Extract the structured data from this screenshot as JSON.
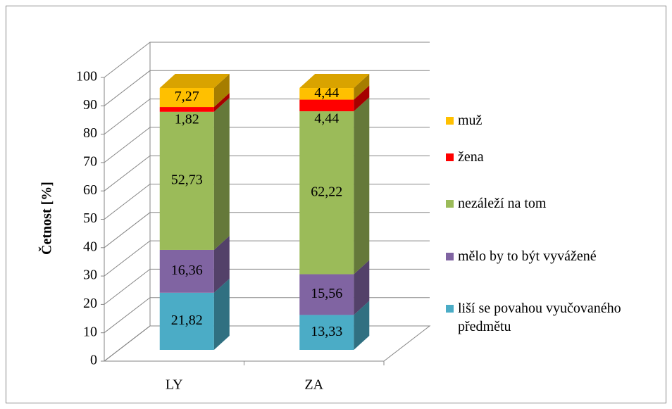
{
  "chart_data": {
    "type": "bar3d_stacked",
    "categories": [
      "LY",
      "ZA"
    ],
    "y_label": "Četnost [%]",
    "ylim": [
      0,
      100
    ],
    "yticks": [
      0,
      10,
      20,
      30,
      40,
      50,
      60,
      70,
      80,
      90,
      100
    ],
    "grid": true,
    "legend": "right",
    "series": [
      {
        "name": "liší se povahou vyučovaného předmětu",
        "color": "#4bacc6",
        "values": [
          21.82,
          13.33
        ],
        "value_labels": [
          "21,82",
          "13,33"
        ]
      },
      {
        "name": "mělo by to být vyvážené",
        "color": "#8064a2",
        "values": [
          16.36,
          15.56
        ],
        "value_labels": [
          "16,36",
          "15,56"
        ]
      },
      {
        "name": "nezáleží na tom",
        "color": "#9bbb59",
        "values": [
          52.73,
          62.22
        ],
        "value_labels": [
          "52,73",
          "62,22"
        ]
      },
      {
        "name": "žena",
        "color": "#ff0000",
        "values": [
          1.82,
          4.44
        ],
        "value_labels": [
          "1,82",
          "4,44"
        ]
      },
      {
        "name": "muž",
        "color": "#ffc000",
        "values": [
          7.27,
          4.44
        ],
        "value_labels": [
          "7,27",
          "4,44"
        ]
      }
    ]
  }
}
